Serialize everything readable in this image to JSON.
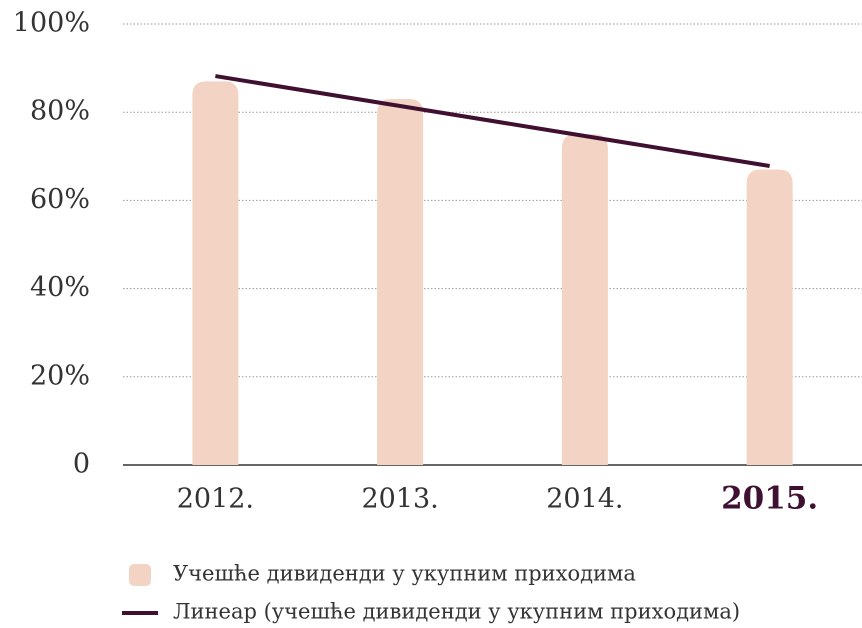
{
  "chart_data": {
    "type": "bar",
    "categories": [
      "2012.",
      "2013.",
      "2014.",
      "2015."
    ],
    "series": [
      {
        "name": "Учешће дивиденди у укупним приходима",
        "color": "#f3d3c3",
        "type": "bar",
        "values": [
          87,
          83,
          75,
          67
        ]
      },
      {
        "name": "Линеар (учешће дивиденди у укупним приходима)",
        "color": "#3f1030",
        "type": "line",
        "values": [
          88.2,
          81.4,
          74.6,
          67.8
        ]
      }
    ],
    "ylim": [
      0,
      100
    ],
    "yticks": [
      0,
      {
        "value": 20,
        "label": "20%"
      },
      {
        "value": 40,
        "label": "40%"
      },
      {
        "value": 60,
        "label": "60%"
      },
      {
        "value": 80,
        "label": "80%"
      },
      {
        "value": 100,
        "label": "100%"
      }
    ],
    "grid": true
  }
}
